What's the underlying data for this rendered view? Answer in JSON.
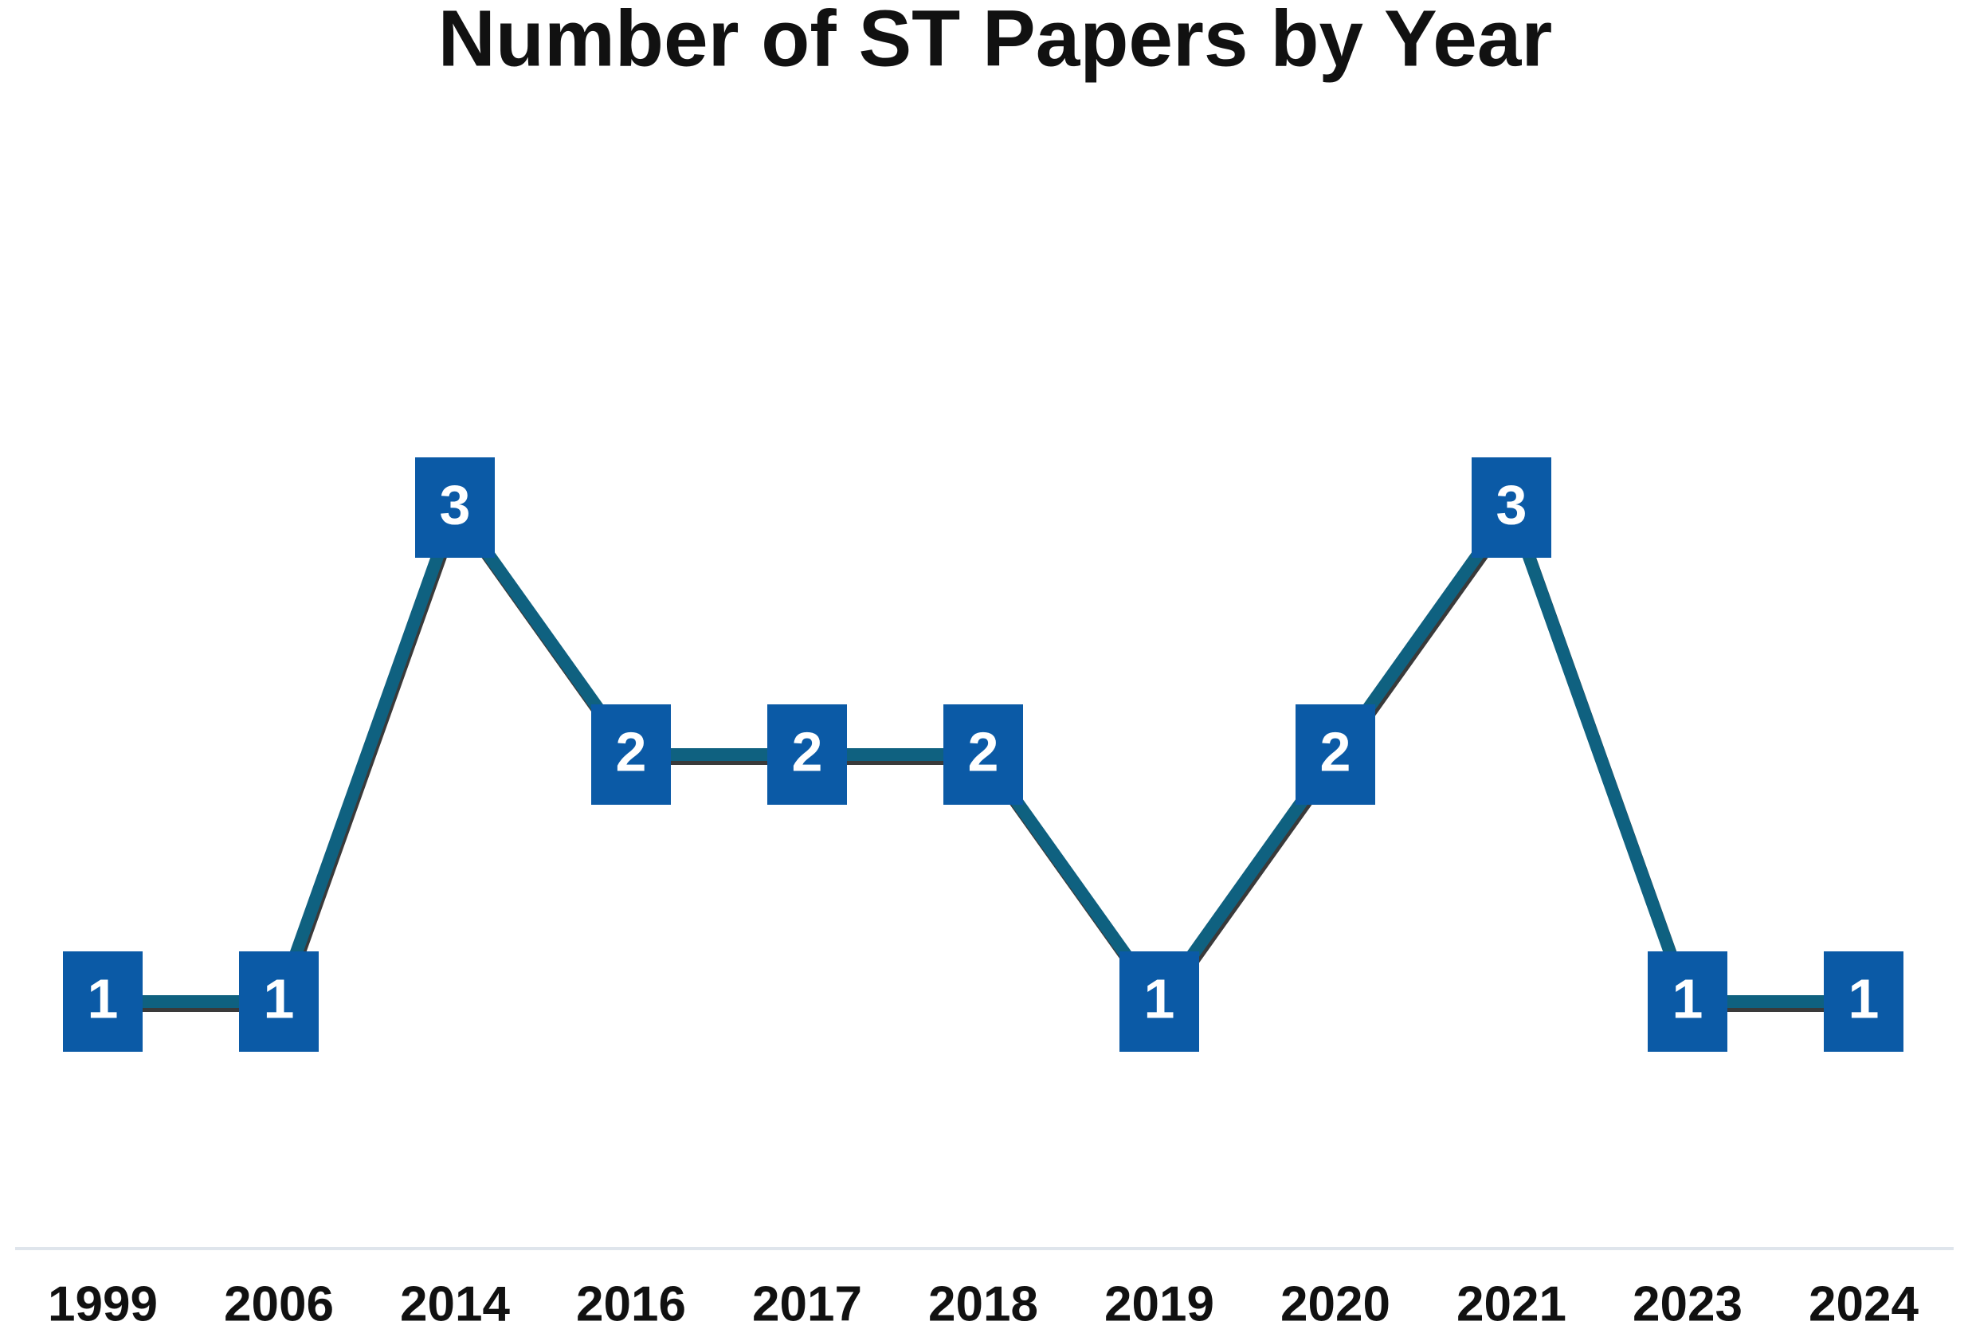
{
  "chart_data": {
    "type": "line",
    "title": "Number of ST Papers by Year",
    "categories": [
      "1999",
      "2006",
      "2014",
      "2016",
      "2017",
      "2018",
      "2019",
      "2020",
      "2021",
      "2023",
      "2024"
    ],
    "values": [
      1,
      1,
      3,
      2,
      2,
      2,
      1,
      2,
      3,
      1,
      1
    ],
    "color": "#0f6180",
    "marker_color": "#0b5aa6",
    "ylim": [
      0,
      4.5
    ],
    "grid": false
  }
}
